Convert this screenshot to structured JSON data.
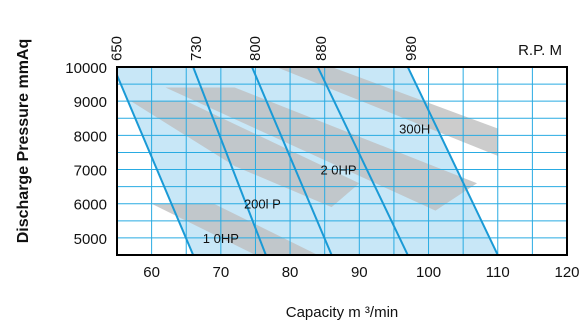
{
  "chart_data": {
    "type": "area",
    "title": "",
    "xlabel": "Capacity m ³/min",
    "ylabel": "Discharge Pressure mmAq",
    "x_ticks": [
      60,
      70,
      80,
      90,
      100,
      110,
      120
    ],
    "y_ticks": [
      5000,
      6000,
      7000,
      8000,
      9000,
      10000
    ],
    "xlim": [
      55,
      120
    ],
    "ylim": [
      4500,
      10000
    ],
    "grid": true,
    "rpm_axis_label": "R.P. M",
    "rpm_lines": [
      {
        "rpm": "650",
        "x_top": 54.5,
        "x_bottom": 66
      },
      {
        "rpm": "730",
        "x_top": 66,
        "x_bottom": 76.5
      },
      {
        "rpm": "800",
        "x_top": 74.5,
        "x_bottom": 86
      },
      {
        "rpm": "880",
        "x_top": 84,
        "x_bottom": 97
      },
      {
        "rpm": "980",
        "x_top": 97,
        "x_bottom": 110
      }
    ],
    "power_bands": [
      {
        "label": "1  0HP",
        "at": [
          70,
          5000
        ],
        "polygon": [
          [
            60,
            6000
          ],
          [
            69,
            6000
          ],
          [
            84,
            4500
          ],
          [
            75,
            4500
          ]
        ]
      },
      {
        "label": "200l  P",
        "at": [
          76,
          6000
        ],
        "polygon": [
          [
            57,
            9000
          ],
          [
            65,
            9000
          ],
          [
            90,
            6600
          ],
          [
            86,
            5900
          ],
          [
            72,
            7100
          ]
        ]
      },
      {
        "label": "2  0HP",
        "at": [
          87,
          7000
        ],
        "polygon": [
          [
            62,
            9400
          ],
          [
            72,
            9400
          ],
          [
            107,
            6600
          ],
          [
            101,
            5800
          ]
        ]
      },
      {
        "label": "300H",
        "at": [
          98,
          8200
        ],
        "polygon": [
          [
            78,
            10000
          ],
          [
            86,
            10000
          ],
          [
            110,
            8200
          ],
          [
            110,
            7400
          ]
        ]
      }
    ]
  }
}
